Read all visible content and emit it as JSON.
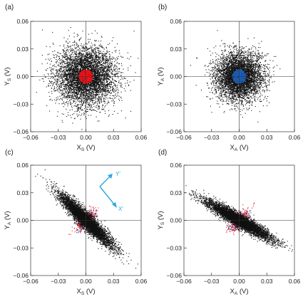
{
  "figure": {
    "panels": [
      {
        "label": "(a)",
        "xlabel": "X",
        "xsub": "S",
        "xunit": " (V)",
        "ylabel": "Y",
        "ysub": "S",
        "yunit": " (V)"
      },
      {
        "label": "(b)",
        "xlabel": "X",
        "xsub": "A",
        "xunit": " (V)",
        "ylabel": "Y",
        "ysub": "A",
        "yunit": " (V)"
      },
      {
        "label": "(c)",
        "xlabel": "X",
        "xsub": "S",
        "xunit": " (V)",
        "ylabel": "Y",
        "ysub": "A",
        "yunit": " (V)"
      },
      {
        "label": "(d)",
        "xlabel": "X",
        "xsub": "A",
        "xunit": " (V)",
        "ylabel": "Y",
        "ysub": "S",
        "yunit": " (V)"
      }
    ],
    "xticks": [
      "−0.06",
      "−0.03",
      "0.00",
      "0.03",
      "0.06"
    ],
    "yticks": [
      "0.06",
      "0.03",
      "0.00",
      "−0.03",
      "−0.06"
    ],
    "annotation": {
      "y_prime": "Y'",
      "x_prime": "X'"
    }
  },
  "chart_data": [
    {
      "type": "scatter",
      "panel": "a",
      "xlim": [
        -0.06,
        0.06
      ],
      "ylim": [
        -0.06,
        0.06
      ],
      "series": [
        {
          "color": "#111111",
          "distribution": "isotropic",
          "center": [
            0.0,
            0.0
          ],
          "std_major": 0.016,
          "std_minor": 0.016,
          "angle_deg": 0,
          "points": 5200
        },
        {
          "color": "#e8141c",
          "distribution": "disk",
          "center": [
            0.0,
            0.0
          ],
          "radius": 0.0075,
          "points": 700
        }
      ]
    },
    {
      "type": "scatter",
      "panel": "b",
      "xlim": [
        -0.06,
        0.06
      ],
      "ylim": [
        -0.06,
        0.06
      ],
      "series": [
        {
          "color": "#111111",
          "distribution": "isotropic",
          "center": [
            0.0,
            0.0
          ],
          "std_major": 0.013,
          "std_minor": 0.013,
          "angle_deg": 0,
          "points": 4800
        },
        {
          "color": "#1f5db4",
          "distribution": "disk",
          "center": [
            0.0,
            0.0
          ],
          "radius": 0.0075,
          "points": 700
        }
      ]
    },
    {
      "type": "scatter",
      "panel": "c",
      "xlim": [
        -0.06,
        0.06
      ],
      "ylim": [
        -0.06,
        0.06
      ],
      "series": [
        {
          "color": "#1f5db4",
          "distribution": "ellipse",
          "center": [
            0.0,
            0.0
          ],
          "std_major": 0.006,
          "std_minor": 0.003,
          "angle_deg": 45,
          "points": 260
        },
        {
          "color": "#e8141c",
          "distribution": "ellipse",
          "center": [
            0.0,
            0.0
          ],
          "std_major": 0.007,
          "std_minor": 0.0035,
          "angle_deg": 45,
          "points": 320
        },
        {
          "color": "#111111",
          "distribution": "ellipse",
          "center": [
            0.0,
            0.0
          ],
          "std_major": 0.02,
          "std_minor": 0.0035,
          "angle_deg": -45,
          "points": 5200
        }
      ]
    },
    {
      "type": "scatter",
      "panel": "d",
      "xlim": [
        -0.06,
        0.06
      ],
      "ylim": [
        -0.06,
        0.06
      ],
      "series": [
        {
          "color": "#1f5db4",
          "distribution": "ellipse",
          "center": [
            0.0,
            0.0
          ],
          "std_major": 0.006,
          "std_minor": 0.003,
          "angle_deg": 45,
          "points": 260
        },
        {
          "color": "#e8141c",
          "distribution": "ellipse",
          "center": [
            0.0,
            0.0
          ],
          "std_major": 0.007,
          "std_minor": 0.0035,
          "angle_deg": 45,
          "points": 320
        },
        {
          "color": "#111111",
          "distribution": "ellipse",
          "center": [
            0.0,
            0.0
          ],
          "std_major": 0.021,
          "std_minor": 0.0032,
          "angle_deg": -30,
          "points": 5200
        }
      ]
    }
  ],
  "colors": {
    "arrow": "#29a8e0",
    "axes": "#333333"
  }
}
